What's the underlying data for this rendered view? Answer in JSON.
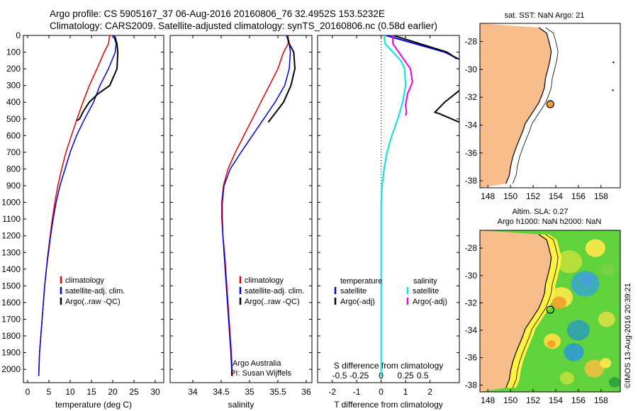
{
  "title_line1": "Argo profile: CS 5905167_37 06-Aug-2016 20160806_76 32.4952S 153.5232E",
  "title_line2": "Climatology: CARS2009. Satellite-adjusted climatology: synTS_20160806.nc (0.58d earlier)",
  "credit": "©IMOS 13-Aug-2016 20:39:21",
  "colors": {
    "climatology": "#e00000",
    "satellite": "#0000dd",
    "argo": "#000000",
    "cyan": "#00e5e5",
    "magenta": "#ee00ee",
    "land": "#f7be8c"
  },
  "chart_data": [
    {
      "type": "line",
      "name": "temperature",
      "xlabel": "temperature (deg C)",
      "ylabel": "",
      "xlim": [
        -1,
        32
      ],
      "ylim": [
        2080,
        0
      ],
      "xticks": [
        "0",
        "5",
        "10",
        "15",
        "20",
        "25",
        "30"
      ],
      "yticks": [
        "0",
        "100",
        "200",
        "300",
        "400",
        "500",
        "600",
        "700",
        "800",
        "900",
        "1000",
        "1100",
        "1200",
        "1300",
        "1400",
        "1500",
        "1600",
        "1700",
        "1800",
        "1900",
        "2000"
      ],
      "legend": [
        "climatology",
        "satellite-adj. clim.",
        "Argo(..raw -QC)"
      ],
      "series": [
        {
          "name": "climatology",
          "x": [
            19.3,
            19.0,
            18.0,
            16.3,
            14.5,
            13.0,
            11.6,
            10.3,
            9.0,
            8.0,
            7.1,
            6.4,
            5.8,
            5.3,
            4.8,
            4.4,
            4.0,
            3.7,
            3.4,
            3.1,
            2.8,
            2.6
          ],
          "y": [
            0,
            50,
            100,
            200,
            300,
            400,
            500,
            600,
            700,
            800,
            900,
            1000,
            1100,
            1200,
            1300,
            1400,
            1500,
            1600,
            1700,
            1800,
            1900,
            2040
          ]
        },
        {
          "name": "satellite",
          "x": [
            20.2,
            20.8,
            20.6,
            19.0,
            17.0,
            15.5,
            13.4,
            11.5,
            10.0,
            8.8,
            7.6,
            6.7,
            6.0,
            5.4,
            4.9,
            4.4,
            4.0,
            3.7,
            3.4,
            3.1,
            2.8,
            2.6
          ],
          "y": [
            0,
            50,
            100,
            200,
            300,
            400,
            500,
            600,
            700,
            800,
            900,
            1000,
            1100,
            1200,
            1300,
            1400,
            1500,
            1600,
            1700,
            1800,
            1900,
            2040
          ]
        },
        {
          "name": "argo",
          "x": [
            20.5,
            21.0,
            21.2,
            21.0,
            19.3,
            16.5,
            14.5,
            13.2,
            12.2,
            11.6
          ],
          "y": [
            5,
            50,
            100,
            200,
            300,
            350,
            400,
            450,
            500,
            510
          ]
        }
      ]
    },
    {
      "type": "line",
      "name": "salinity",
      "xlabel": "salinity",
      "xlim": [
        33.6,
        36.1
      ],
      "ylim": [
        2080,
        0
      ],
      "xticks": [
        "34",
        "34.5",
        "35",
        "35.5",
        "36"
      ],
      "legend": [
        "climatology",
        "satellite-adj. clim.",
        "Argo(..raw -QC)"
      ],
      "annotation": [
        "Argo Australia",
        "PI: Susan Wijffels"
      ],
      "series": [
        {
          "name": "climatology",
          "x": [
            35.68,
            35.68,
            35.6,
            35.5,
            35.35,
            35.2,
            35.05,
            34.9,
            34.75,
            34.62,
            34.54,
            34.51,
            34.51,
            34.53,
            34.56,
            34.58,
            34.6,
            34.62,
            34.64,
            34.66,
            34.68,
            34.7
          ],
          "y": [
            0,
            50,
            100,
            200,
            300,
            400,
            500,
            600,
            700,
            800,
            900,
            1000,
            1100,
            1200,
            1300,
            1400,
            1500,
            1600,
            1700,
            1800,
            1900,
            2040
          ]
        },
        {
          "name": "satellite",
          "x": [
            35.65,
            35.7,
            35.72,
            35.7,
            35.62,
            35.45,
            35.25,
            35.05,
            34.85,
            34.66,
            34.55,
            34.52,
            34.52,
            34.53,
            34.55,
            34.57,
            34.59,
            34.61,
            34.63,
            34.65,
            34.67,
            34.69
          ],
          "y": [
            0,
            50,
            100,
            200,
            300,
            400,
            500,
            600,
            700,
            800,
            900,
            1000,
            1100,
            1200,
            1300,
            1400,
            1500,
            1600,
            1700,
            1800,
            1900,
            2040
          ]
        },
        {
          "name": "argo",
          "x": [
            35.67,
            35.7,
            35.78,
            35.8,
            35.73,
            35.6,
            35.42,
            35.33
          ],
          "y": [
            5,
            50,
            100,
            200,
            300,
            400,
            480,
            520
          ]
        }
      ]
    },
    {
      "type": "line",
      "name": "difference",
      "xlabel": "T difference from climatology",
      "xlabel_top": "S difference from climatology",
      "xlim": [
        -2.6,
        3.2
      ],
      "ylim": [
        2080,
        0
      ],
      "xticks_bottom": [
        "-2",
        "-1",
        "0",
        "1",
        "2"
      ],
      "xticks_top": [
        "-0.5",
        "-0.25",
        "0",
        "0.25",
        "0.5"
      ],
      "legend_headers": [
        "temperature",
        "salinity"
      ],
      "legend": [
        "satellite",
        "Argo(-adj)",
        "satellite",
        "Argo(-adj)"
      ],
      "series": [
        {
          "name": "T satellite",
          "x": [
            0.2,
            1.4,
            2.6,
            3.3
          ],
          "y": [
            0,
            50,
            100,
            150
          ]
        },
        {
          "name": "T Argo(-adj)",
          "x": [
            0.5,
            1.6,
            2.7,
            3.1
          ],
          "y": [
            0,
            50,
            100,
            140
          ]
        },
        {
          "name": "T Argo(-adj) deep",
          "x": [
            3.2,
            2.6,
            2.2,
            2.4,
            3.2
          ],
          "y": [
            330,
            400,
            460,
            470,
            520
          ]
        },
        {
          "name": "S satellite",
          "x": [
            0.03,
            0.04,
            0.12,
            0.2,
            0.24,
            0.25,
            0.22,
            0.17,
            0.11,
            0.06,
            0.03,
            0.01,
            0.0,
            0.0,
            0.0,
            0.0,
            0.0,
            0.0,
            0.0,
            0.0
          ],
          "y": [
            0,
            50,
            100,
            150,
            200,
            300,
            400,
            500,
            600,
            700,
            800,
            900,
            1000,
            1200,
            1400,
            1600,
            1700,
            1800,
            1900,
            2040
          ]
        },
        {
          "name": "S Argo(-adj)",
          "x": [
            0.12,
            0.12,
            0.18,
            0.3,
            0.32,
            0.27,
            0.25,
            0.26,
            0.25
          ],
          "y": [
            0,
            50,
            100,
            200,
            280,
            350,
            420,
            460,
            480
          ]
        }
      ]
    },
    {
      "type": "map",
      "name": "sst-map",
      "title": "sat. SST: NaN Argo: 21",
      "xticks": [
        "148",
        "150",
        "152",
        "154",
        "156",
        "158"
      ],
      "yticks": [
        "-28",
        "-30",
        "-32",
        "-34",
        "-36",
        "-38"
      ],
      "marker": {
        "lon": 153.52,
        "lat": -32.5
      }
    },
    {
      "type": "heatmap",
      "name": "sla-map",
      "title_line1": "Altim. SLA: 0.27",
      "title_line2": "Argo h1000: NaN h2000: NaN",
      "xticks": [
        "148",
        "150",
        "152",
        "154",
        "156",
        "158"
      ],
      "yticks": [
        "-28",
        "-30",
        "-32",
        "-34",
        "-36",
        "-38"
      ],
      "marker": {
        "lon": 153.52,
        "lat": -32.5
      }
    }
  ]
}
